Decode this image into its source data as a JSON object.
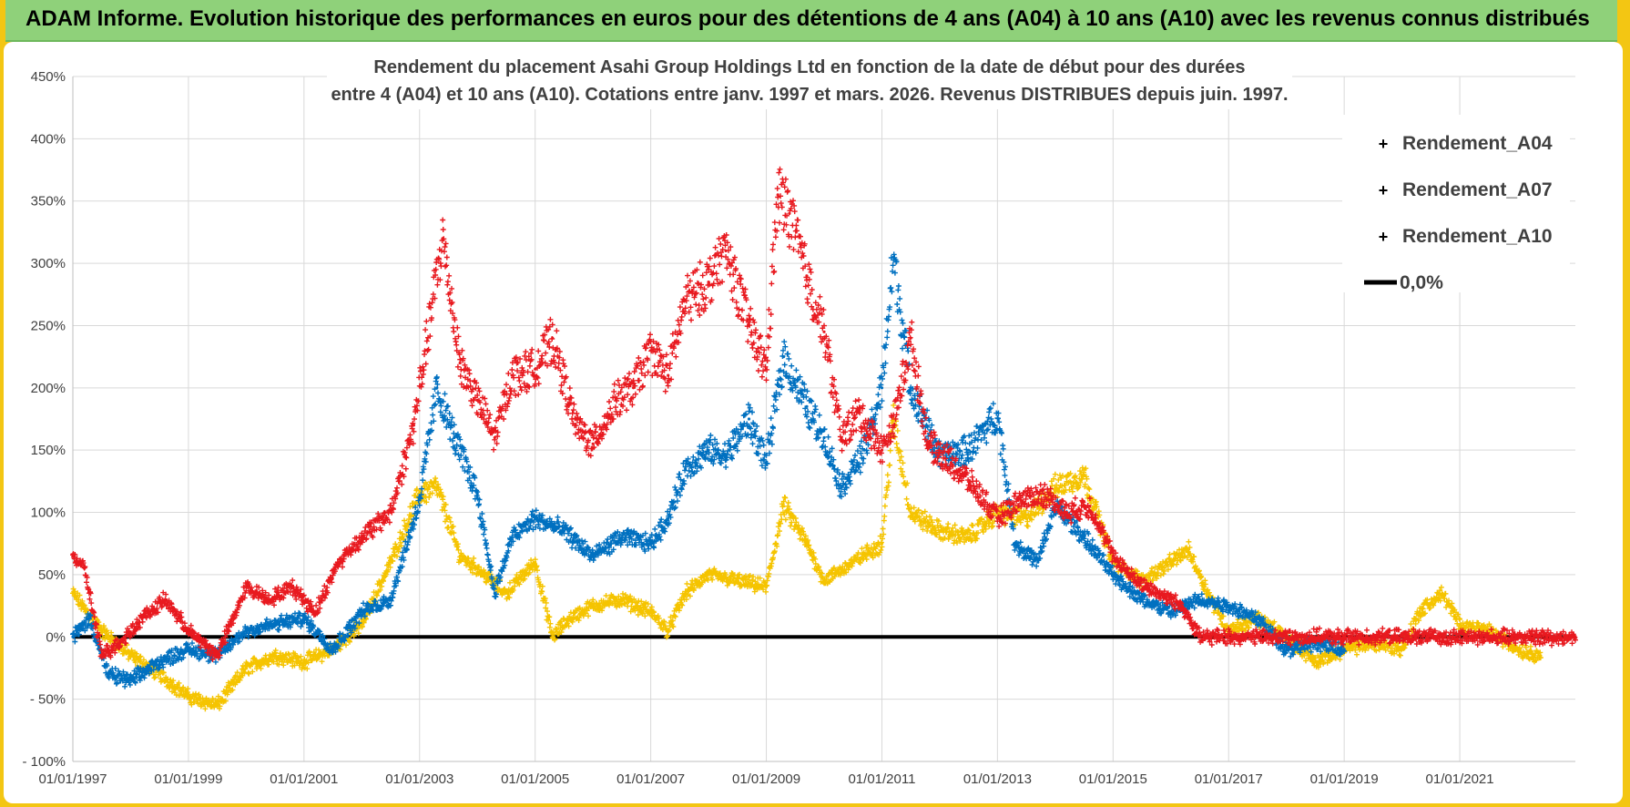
{
  "banner": {
    "title": "ADAM Informe. Evolution historique des performances en euros pour des détentions de 4 ans (A04) à 10 ans (A10) avec les revenus connus distribués"
  },
  "colors": {
    "A04": "#f5c400",
    "A07": "#0070c0",
    "A10": "#e8191f",
    "zero": "#000000"
  },
  "chart_data": {
    "type": "scatter",
    "title_line1": "Rendement du placement Asahi Group Holdings Ltd en fonction de la date de début pour des durées",
    "title_line2": "entre 4 (A04) et 10 ans (A10).  Cotations entre janv. 1997 et mars. 2026.  Revenus DISTRIBUES depuis juin. 1997.",
    "xlabel": "",
    "ylabel": "",
    "x_range": [
      1997.0,
      2023.0
    ],
    "ylim": [
      -100,
      450
    ],
    "y_ticks": [
      450,
      400,
      350,
      300,
      250,
      200,
      150,
      100,
      50,
      0,
      -50,
      -100
    ],
    "y_tick_labels": [
      "450%",
      "400%",
      "350%",
      "300%",
      "250%",
      "200%",
      "150%",
      "100%",
      "50%",
      "0%",
      "- 50%",
      "- 100%"
    ],
    "x_ticks": [
      1997,
      1999,
      2001,
      2003,
      2005,
      2007,
      2009,
      2011,
      2013,
      2015,
      2017,
      2019,
      2021
    ],
    "x_tick_labels": [
      "01/01/1997",
      "01/01/1999",
      "01/01/2001",
      "01/01/2003",
      "01/01/2005",
      "01/01/2007",
      "01/01/2009",
      "01/01/2011",
      "01/01/2013",
      "01/01/2015",
      "01/01/2017",
      "01/01/2019",
      "01/01/2021"
    ],
    "legend": [
      "Rendement_A04",
      "Rendement_A07",
      "Rendement_A10",
      "0,0%"
    ],
    "legend_position": "top-right",
    "series": [
      {
        "name": "Rendement_A04",
        "x": [
          1997.0,
          1997.5,
          1998.0,
          1998.5,
          1999.0,
          1999.5,
          2000.0,
          2000.5,
          2001.0,
          2001.5,
          2002.0,
          2002.5,
          2003.0,
          2003.3,
          2003.7,
          2004.0,
          2004.5,
          2005.0,
          2005.3,
          2005.6,
          2006.0,
          2006.5,
          2007.0,
          2007.3,
          2007.6,
          2008.0,
          2008.5,
          2009.0,
          2009.3,
          2009.7,
          2010.0,
          2010.5,
          2011.0,
          2011.2,
          2011.5,
          2012.0,
          2012.5,
          2013.0,
          2013.5,
          2014.0,
          2014.5,
          2015.0,
          2015.5,
          2016.0,
          2016.3,
          2016.7,
          2017.0,
          2017.5,
          2018.0,
          2018.5,
          2019.0,
          2019.5,
          2020.0,
          2020.3,
          2020.7,
          2021.0,
          2021.5,
          2022.0,
          2022.4
        ],
        "y": [
          35,
          5,
          -15,
          -30,
          -48,
          -55,
          -25,
          -15,
          -20,
          -10,
          10,
          60,
          115,
          120,
          65,
          55,
          35,
          60,
          0,
          15,
          25,
          30,
          20,
          5,
          35,
          50,
          45,
          40,
          105,
          75,
          45,
          60,
          75,
          175,
          100,
          85,
          80,
          100,
          95,
          120,
          130,
          60,
          45,
          60,
          70,
          30,
          5,
          15,
          0,
          -20,
          -10,
          -5,
          -10,
          20,
          35,
          10,
          5,
          -10,
          -15
        ]
      },
      {
        "name": "Rendement_A07",
        "x": [
          1997.0,
          1997.3,
          1997.6,
          1998.0,
          1998.5,
          1999.0,
          1999.5,
          2000.0,
          2000.5,
          2001.0,
          2001.5,
          2002.0,
          2002.5,
          2003.0,
          2003.3,
          2003.6,
          2004.0,
          2004.3,
          2004.6,
          2005.0,
          2005.5,
          2006.0,
          2006.5,
          2007.0,
          2007.3,
          2007.6,
          2008.0,
          2008.3,
          2008.7,
          2009.0,
          2009.3,
          2009.7,
          2010.0,
          2010.3,
          2010.7,
          2011.0,
          2011.2,
          2011.5,
          2012.0,
          2012.5,
          2013.0,
          2013.3,
          2013.7,
          2014.0,
          2014.5,
          2015.0,
          2015.5,
          2016.0,
          2016.5,
          2017.0,
          2017.5,
          2018.0,
          2018.5,
          2019.0
        ],
        "y": [
          0,
          15,
          -30,
          -35,
          -20,
          -10,
          -15,
          5,
          10,
          15,
          -10,
          20,
          30,
          110,
          200,
          160,
          115,
          35,
          80,
          95,
          85,
          65,
          80,
          75,
          95,
          135,
          150,
          145,
          175,
          140,
          225,
          185,
          160,
          120,
          150,
          200,
          305,
          200,
          145,
          150,
          180,
          75,
          60,
          105,
          80,
          50,
          30,
          20,
          30,
          25,
          15,
          -10,
          -5,
          -10
        ]
      },
      {
        "name": "Rendement_A10",
        "x": [
          1997.0,
          1997.2,
          1997.5,
          1997.8,
          1998.2,
          1998.6,
          1999.0,
          1999.5,
          2000.0,
          2000.4,
          2000.8,
          2001.2,
          2001.6,
          2002.0,
          2002.5,
          2002.9,
          2003.1,
          2003.4,
          2003.7,
          2004.0,
          2004.3,
          2004.6,
          2005.0,
          2005.3,
          2005.7,
          2006.0,
          2006.4,
          2006.7,
          2007.0,
          2007.3,
          2007.6,
          2008.0,
          2008.3,
          2008.7,
          2009.0,
          2009.2,
          2009.4,
          2009.7,
          2010.0,
          2010.3,
          2010.6,
          2011.0,
          2011.2,
          2011.5,
          2011.8,
          2012.2,
          2012.6,
          2013.0,
          2013.4,
          2013.8,
          2014.2,
          2014.6,
          2015.0,
          2015.4,
          2015.8,
          2016.2,
          2016.5,
          2017.0,
          2018.0,
          2019.0,
          2020.0,
          2021.0,
          2022.0,
          2023.0
        ],
        "y": [
          65,
          55,
          -15,
          -5,
          15,
          30,
          5,
          -15,
          40,
          30,
          40,
          20,
          60,
          80,
          100,
          170,
          230,
          320,
          220,
          190,
          160,
          210,
          215,
          240,
          170,
          155,
          190,
          200,
          230,
          210,
          270,
          285,
          310,
          250,
          215,
          355,
          340,
          290,
          245,
          160,
          180,
          150,
          170,
          240,
          155,
          140,
          120,
          95,
          110,
          115,
          100,
          105,
          65,
          45,
          35,
          25,
          0,
          0,
          0,
          0,
          0,
          0,
          0,
          0
        ]
      },
      {
        "name": "0,0%",
        "x": [
          1997.0,
          2023.0
        ],
        "y": [
          0,
          0
        ]
      }
    ]
  }
}
